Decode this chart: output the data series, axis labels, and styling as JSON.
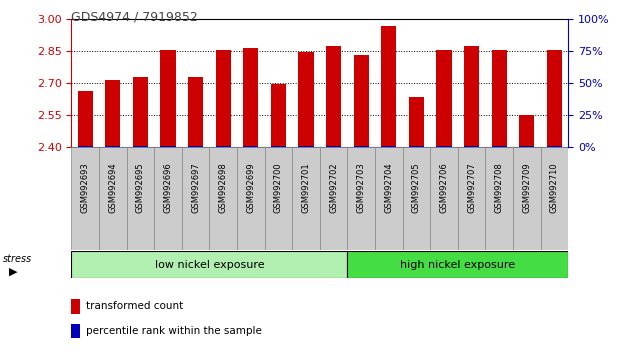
{
  "title": "GDS4974 / 7919852",
  "categories": [
    "GSM992693",
    "GSM992694",
    "GSM992695",
    "GSM992696",
    "GSM992697",
    "GSM992698",
    "GSM992699",
    "GSM992700",
    "GSM992701",
    "GSM992702",
    "GSM992703",
    "GSM992704",
    "GSM992705",
    "GSM992706",
    "GSM992707",
    "GSM992708",
    "GSM992709",
    "GSM992710"
  ],
  "red_values": [
    2.665,
    2.715,
    2.73,
    2.855,
    2.73,
    2.855,
    2.865,
    2.695,
    2.845,
    2.875,
    2.835,
    2.97,
    2.635,
    2.855,
    2.875,
    2.855,
    2.55,
    2.855
  ],
  "blue_pct": [
    1,
    1,
    1,
    1,
    1,
    1,
    1,
    1,
    1,
    1,
    1,
    1,
    1,
    1,
    1,
    1,
    1,
    1
  ],
  "ymin": 2.4,
  "ymax": 3.0,
  "y2min": 0,
  "y2max": 100,
  "yticks": [
    2.4,
    2.55,
    2.7,
    2.85,
    3.0
  ],
  "y2ticks": [
    0,
    25,
    50,
    75,
    100
  ],
  "low_nickel_count": 10,
  "group1_label": "low nickel exposure",
  "group2_label": "high nickel exposure",
  "stress_label": "stress",
  "legend1": "transformed count",
  "legend2": "percentile rank within the sample",
  "bar_width": 0.55,
  "red_color": "#cc0000",
  "blue_color": "#0000bb",
  "group1_color": "#b2f0b2",
  "group2_color": "#44dd44",
  "tickbox_color": "#cccccc",
  "tickbox_edge": "#888888"
}
